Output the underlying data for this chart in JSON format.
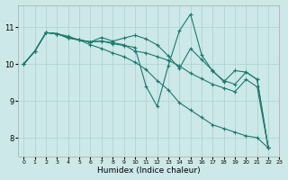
{
  "xlabel": "Humidex (Indice chaleur)",
  "ylabel": "",
  "bg_color": "#cce8e8",
  "line_color": "#1a7a6e",
  "grid_color": "#aad0d0",
  "xlim": [
    -0.5,
    23
  ],
  "ylim": [
    7.5,
    11.6
  ],
  "yticks": [
    8,
    9,
    10,
    11
  ],
  "xticks": [
    0,
    1,
    2,
    3,
    4,
    5,
    6,
    7,
    8,
    9,
    10,
    11,
    12,
    13,
    14,
    15,
    16,
    17,
    18,
    19,
    20,
    21,
    22,
    23
  ],
  "series": [
    [
      0,
      10.0,
      1,
      10.35,
      2,
      10.85,
      3,
      10.82,
      4,
      10.75,
      5,
      10.65,
      6,
      10.6,
      7,
      10.72,
      8,
      10.62,
      9,
      10.7,
      10,
      10.78,
      11,
      10.68,
      12,
      10.52,
      13,
      10.22,
      14,
      9.88,
      15,
      10.42,
      16,
      10.12,
      17,
      9.82,
      18,
      9.52,
      19,
      9.82,
      20,
      9.78,
      21,
      9.58,
      22,
      7.72
    ],
    [
      0,
      10.0,
      1,
      10.35,
      2,
      10.85,
      3,
      10.82,
      4,
      10.7,
      5,
      10.65,
      6,
      10.6,
      7,
      10.62,
      8,
      10.55,
      9,
      10.5,
      10,
      10.45,
      11,
      9.4,
      12,
      8.85,
      13,
      9.95,
      14,
      10.9,
      15,
      11.35,
      16,
      10.25,
      17,
      9.8,
      18,
      9.55,
      19,
      9.45,
      20,
      9.78,
      21,
      9.58,
      22,
      7.72
    ],
    [
      0,
      10.0,
      1,
      10.35,
      2,
      10.85,
      3,
      10.82,
      4,
      10.72,
      5,
      10.65,
      6,
      10.6,
      7,
      10.62,
      8,
      10.58,
      9,
      10.52,
      10,
      10.35,
      11,
      10.3,
      12,
      10.2,
      13,
      10.1,
      14,
      9.95,
      15,
      9.75,
      16,
      9.6,
      17,
      9.45,
      18,
      9.35,
      19,
      9.25,
      20,
      9.58,
      21,
      9.38,
      22,
      7.72
    ],
    [
      0,
      10.0,
      1,
      10.35,
      2,
      10.85,
      3,
      10.82,
      4,
      10.72,
      5,
      10.65,
      6,
      10.52,
      7,
      10.42,
      8,
      10.3,
      9,
      10.2,
      10,
      10.05,
      11,
      9.85,
      12,
      9.55,
      13,
      9.3,
      14,
      8.95,
      15,
      8.75,
      16,
      8.55,
      17,
      8.35,
      18,
      8.25,
      19,
      8.15,
      20,
      8.05,
      21,
      8.0,
      22,
      7.72
    ]
  ]
}
